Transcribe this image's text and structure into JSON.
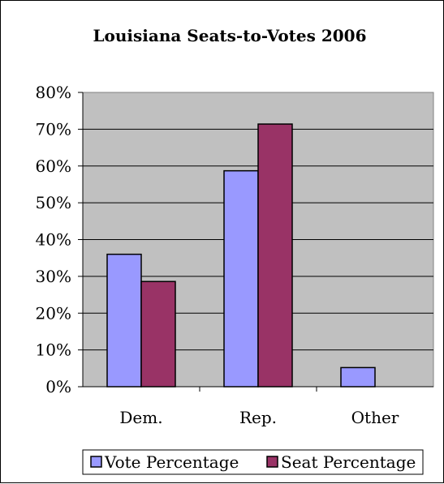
{
  "chart_data": {
    "type": "bar",
    "title": "Louisiana Seats-to-Votes 2006",
    "categories": [
      "Dem.",
      "Rep.",
      "Other"
    ],
    "series": [
      {
        "name": "Vote Percentage",
        "color": "#9999ff",
        "values": [
          0.36,
          0.587,
          0.052
        ]
      },
      {
        "name": "Seat Percentage",
        "color": "#993366",
        "values": [
          0.286,
          0.714,
          null
        ]
      }
    ],
    "ylim": [
      0,
      0.8
    ],
    "yticks": [
      "0%",
      "10%",
      "20%",
      "30%",
      "40%",
      "50%",
      "60%",
      "70%",
      "80%"
    ],
    "grid": true,
    "plot_background": "#c0c0c0",
    "legend_position": "bottom"
  }
}
